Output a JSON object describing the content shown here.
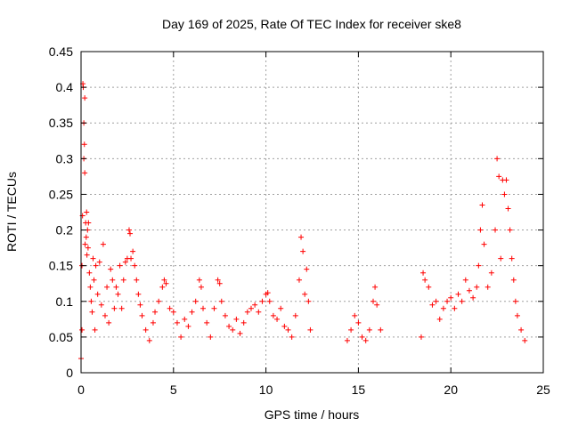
{
  "chart_data": {
    "type": "scatter",
    "title": "Day 169 of 2025, Rate Of TEC Index for receiver ske8",
    "xlabel": "GPS time / hours",
    "ylabel": "ROTI / TECUs",
    "xlim": [
      0,
      25
    ],
    "ylim": [
      0,
      0.45
    ],
    "xticks": [
      "0",
      "5",
      "10",
      "15",
      "20",
      "25"
    ],
    "yticks": [
      "0",
      "0.05",
      "0.1",
      "0.15",
      "0.2",
      "0.25",
      "0.3",
      "0.35",
      "0.4",
      "0.45"
    ],
    "grid": true,
    "marker": "+",
    "color": "#ff0000",
    "series": [
      {
        "name": "ROTI",
        "points": [
          [
            0.0,
            0.02
          ],
          [
            0.05,
            0.06
          ],
          [
            0.05,
            0.15
          ],
          [
            0.08,
            0.22
          ],
          [
            0.1,
            0.405
          ],
          [
            0.12,
            0.4
          ],
          [
            0.15,
            0.35
          ],
          [
            0.15,
            0.3
          ],
          [
            0.18,
            0.32
          ],
          [
            0.2,
            0.28
          ],
          [
            0.2,
            0.385
          ],
          [
            0.22,
            0.18
          ],
          [
            0.25,
            0.21
          ],
          [
            0.28,
            0.19
          ],
          [
            0.3,
            0.225
          ],
          [
            0.32,
            0.165
          ],
          [
            0.35,
            0.2
          ],
          [
            0.38,
            0.175
          ],
          [
            0.4,
            0.21
          ],
          [
            0.45,
            0.14
          ],
          [
            0.5,
            0.12
          ],
          [
            0.55,
            0.1
          ],
          [
            0.6,
            0.085
          ],
          [
            0.65,
            0.16
          ],
          [
            0.7,
            0.13
          ],
          [
            0.75,
            0.06
          ],
          [
            0.8,
            0.15
          ],
          [
            0.9,
            0.11
          ],
          [
            1.0,
            0.155
          ],
          [
            1.1,
            0.095
          ],
          [
            1.2,
            0.18
          ],
          [
            1.3,
            0.08
          ],
          [
            1.4,
            0.12
          ],
          [
            1.5,
            0.07
          ],
          [
            1.6,
            0.145
          ],
          [
            1.7,
            0.13
          ],
          [
            1.8,
            0.09
          ],
          [
            1.9,
            0.12
          ],
          [
            2.0,
            0.11
          ],
          [
            2.1,
            0.15
          ],
          [
            2.2,
            0.09
          ],
          [
            2.3,
            0.13
          ],
          [
            2.4,
            0.155
          ],
          [
            2.5,
            0.16
          ],
          [
            2.6,
            0.2
          ],
          [
            2.65,
            0.195
          ],
          [
            2.7,
            0.16
          ],
          [
            2.8,
            0.17
          ],
          [
            2.9,
            0.15
          ],
          [
            3.0,
            0.13
          ],
          [
            3.1,
            0.11
          ],
          [
            3.2,
            0.095
          ],
          [
            3.3,
            0.08
          ],
          [
            3.5,
            0.06
          ],
          [
            3.7,
            0.045
          ],
          [
            3.9,
            0.07
          ],
          [
            4.0,
            0.085
          ],
          [
            4.2,
            0.1
          ],
          [
            4.4,
            0.12
          ],
          [
            4.5,
            0.13
          ],
          [
            4.6,
            0.125
          ],
          [
            4.8,
            0.09
          ],
          [
            5.0,
            0.085
          ],
          [
            5.2,
            0.07
          ],
          [
            5.4,
            0.05
          ],
          [
            5.6,
            0.075
          ],
          [
            5.8,
            0.065
          ],
          [
            6.0,
            0.085
          ],
          [
            6.2,
            0.1
          ],
          [
            6.4,
            0.13
          ],
          [
            6.5,
            0.12
          ],
          [
            6.6,
            0.09
          ],
          [
            6.8,
            0.07
          ],
          [
            7.0,
            0.05
          ],
          [
            7.2,
            0.09
          ],
          [
            7.4,
            0.13
          ],
          [
            7.5,
            0.125
          ],
          [
            7.6,
            0.1
          ],
          [
            7.8,
            0.08
          ],
          [
            8.0,
            0.065
          ],
          [
            8.2,
            0.06
          ],
          [
            8.4,
            0.075
          ],
          [
            8.6,
            0.055
          ],
          [
            8.8,
            0.07
          ],
          [
            9.0,
            0.085
          ],
          [
            9.2,
            0.09
          ],
          [
            9.4,
            0.095
          ],
          [
            9.6,
            0.085
          ],
          [
            9.8,
            0.1
          ],
          [
            10.0,
            0.11
          ],
          [
            10.1,
            0.112
          ],
          [
            10.2,
            0.1
          ],
          [
            10.4,
            0.08
          ],
          [
            10.6,
            0.075
          ],
          [
            10.8,
            0.09
          ],
          [
            11.0,
            0.065
          ],
          [
            11.2,
            0.06
          ],
          [
            11.4,
            0.05
          ],
          [
            11.6,
            0.08
          ],
          [
            11.8,
            0.13
          ],
          [
            11.9,
            0.19
          ],
          [
            12.0,
            0.17
          ],
          [
            12.1,
            0.11
          ],
          [
            12.2,
            0.145
          ],
          [
            12.3,
            0.1
          ],
          [
            12.4,
            0.06
          ],
          [
            14.4,
            0.045
          ],
          [
            14.6,
            0.06
          ],
          [
            14.8,
            0.08
          ],
          [
            15.0,
            0.07
          ],
          [
            15.2,
            0.05
          ],
          [
            15.4,
            0.045
          ],
          [
            15.6,
            0.06
          ],
          [
            15.8,
            0.1
          ],
          [
            15.9,
            0.12
          ],
          [
            16.0,
            0.095
          ],
          [
            16.2,
            0.06
          ],
          [
            18.4,
            0.05
          ],
          [
            18.5,
            0.14
          ],
          [
            18.6,
            0.13
          ],
          [
            18.8,
            0.12
          ],
          [
            19.0,
            0.095
          ],
          [
            19.2,
            0.1
          ],
          [
            19.4,
            0.075
          ],
          [
            19.6,
            0.09
          ],
          [
            19.8,
            0.1
          ],
          [
            20.0,
            0.105
          ],
          [
            20.2,
            0.09
          ],
          [
            20.4,
            0.11
          ],
          [
            20.6,
            0.1
          ],
          [
            20.8,
            0.13
          ],
          [
            21.0,
            0.115
          ],
          [
            21.2,
            0.105
          ],
          [
            21.4,
            0.12
          ],
          [
            21.5,
            0.15
          ],
          [
            21.6,
            0.2
          ],
          [
            21.7,
            0.235
          ],
          [
            21.8,
            0.18
          ],
          [
            22.0,
            0.12
          ],
          [
            22.2,
            0.14
          ],
          [
            22.4,
            0.2
          ],
          [
            22.5,
            0.3
          ],
          [
            22.6,
            0.275
          ],
          [
            22.7,
            0.16
          ],
          [
            22.8,
            0.27
          ],
          [
            22.9,
            0.25
          ],
          [
            23.0,
            0.27
          ],
          [
            23.1,
            0.23
          ],
          [
            23.2,
            0.2
          ],
          [
            23.3,
            0.16
          ],
          [
            23.4,
            0.13
          ],
          [
            23.5,
            0.1
          ],
          [
            23.6,
            0.08
          ],
          [
            23.8,
            0.06
          ],
          [
            24.0,
            0.045
          ]
        ]
      }
    ]
  }
}
